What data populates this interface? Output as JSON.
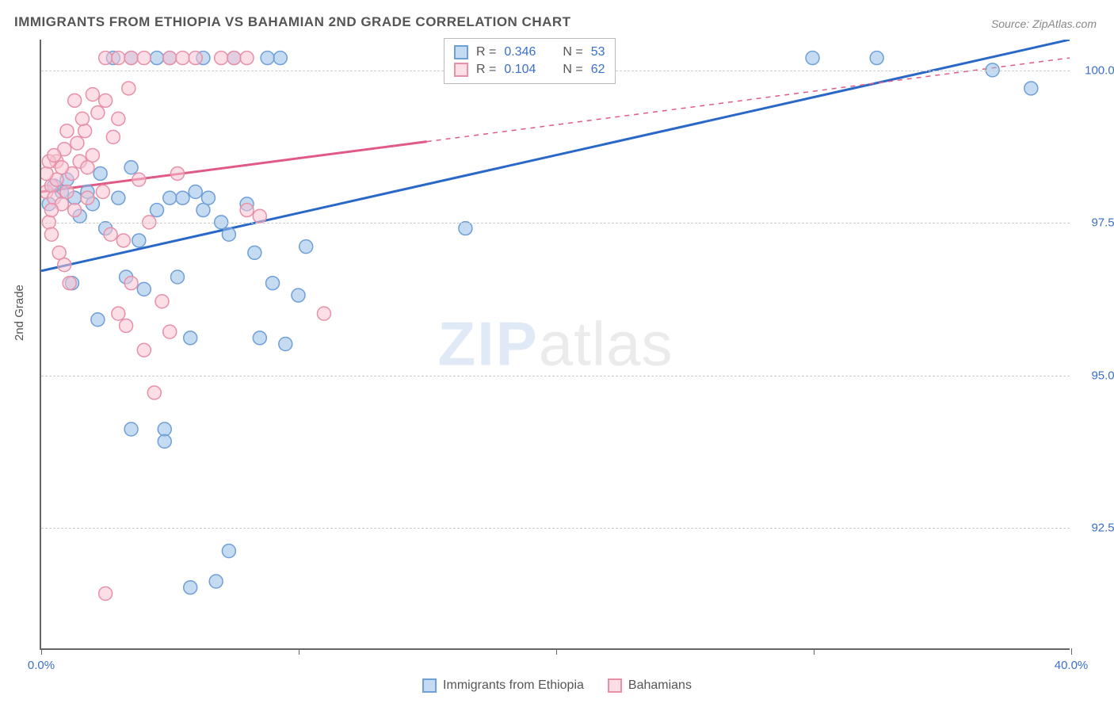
{
  "title": "IMMIGRANTS FROM ETHIOPIA VS BAHAMIAN 2ND GRADE CORRELATION CHART",
  "source": "Source: ZipAtlas.com",
  "y_axis_label": "2nd Grade",
  "watermark": {
    "zip": "ZIP",
    "atlas": "atlas"
  },
  "chart": {
    "type": "scatter",
    "xlim": [
      0,
      40
    ],
    "ylim": [
      90.5,
      100.5
    ],
    "x_ticks": [
      0,
      10,
      20,
      30,
      40
    ],
    "x_tick_labels": [
      "0.0%",
      "",
      "",
      "",
      "40.0%"
    ],
    "y_ticks": [
      92.5,
      95.0,
      97.5,
      100.0
    ],
    "y_tick_labels": [
      "92.5%",
      "95.0%",
      "97.5%",
      "100.0%"
    ],
    "grid_color": "#cccccc",
    "background_color": "#ffffff",
    "axis_color": "#666666",
    "series": [
      {
        "name": "Immigrants from Ethiopia",
        "color_stroke": "#6f9fd8",
        "color_fill": "rgba(150,190,230,0.55)",
        "line_color": "#2a68c8",
        "R": "0.346",
        "N": "53",
        "trend": {
          "x1": 0,
          "y1": 96.7,
          "x2": 40,
          "y2": 100.5,
          "x_solid_end": 40
        },
        "points": [
          [
            0.5,
            98.1
          ],
          [
            0.8,
            98.0
          ],
          [
            1.0,
            98.2
          ],
          [
            1.3,
            97.9
          ],
          [
            1.5,
            97.6
          ],
          [
            1.8,
            98.0
          ],
          [
            2.0,
            97.8
          ],
          [
            2.3,
            98.3
          ],
          [
            2.5,
            97.4
          ],
          [
            3.0,
            97.9
          ],
          [
            3.3,
            96.6
          ],
          [
            3.5,
            98.4
          ],
          [
            3.8,
            97.2
          ],
          [
            4.0,
            96.4
          ],
          [
            4.5,
            97.7
          ],
          [
            4.8,
            94.1
          ],
          [
            5.0,
            97.9
          ],
          [
            5.3,
            96.6
          ],
          [
            5.5,
            97.9
          ],
          [
            5.8,
            95.6
          ],
          [
            6.0,
            98.0
          ],
          [
            6.3,
            97.7
          ],
          [
            6.5,
            97.9
          ],
          [
            6.8,
            91.6
          ],
          [
            7.0,
            97.5
          ],
          [
            7.3,
            97.3
          ],
          [
            8.0,
            97.8
          ],
          [
            8.3,
            97.0
          ],
          [
            8.5,
            95.6
          ],
          [
            9.0,
            96.5
          ],
          [
            9.3,
            100.2
          ],
          [
            9.5,
            95.5
          ],
          [
            10.0,
            96.3
          ],
          [
            10.3,
            97.1
          ],
          [
            3.5,
            94.1
          ],
          [
            4.8,
            93.9
          ],
          [
            7.3,
            92.1
          ],
          [
            5.8,
            91.5
          ],
          [
            2.8,
            100.2
          ],
          [
            3.5,
            100.2
          ],
          [
            4.5,
            100.2
          ],
          [
            5.0,
            100.2
          ],
          [
            6.3,
            100.2
          ],
          [
            7.5,
            100.2
          ],
          [
            8.8,
            100.2
          ],
          [
            16.5,
            97.4
          ],
          [
            30.0,
            100.2
          ],
          [
            32.5,
            100.2
          ],
          [
            37.0,
            100.0
          ],
          [
            38.5,
            99.7
          ],
          [
            1.2,
            96.5
          ],
          [
            2.2,
            95.9
          ],
          [
            0.3,
            97.8
          ]
        ]
      },
      {
        "name": "Bahamians",
        "color_stroke": "#e890a8",
        "color_fill": "rgba(248,195,210,0.55)",
        "line_color": "#e05a87",
        "R": "0.104",
        "N": "62",
        "trend": {
          "x1": 0,
          "y1": 98.0,
          "x2": 40,
          "y2": 100.2,
          "x_solid_end": 15
        },
        "points": [
          [
            0.2,
            98.0
          ],
          [
            0.4,
            98.1
          ],
          [
            0.5,
            97.9
          ],
          [
            0.6,
            98.2
          ],
          [
            0.8,
            97.8
          ],
          [
            1.0,
            98.0
          ],
          [
            1.2,
            98.3
          ],
          [
            1.3,
            97.7
          ],
          [
            1.5,
            98.5
          ],
          [
            1.7,
            99.0
          ],
          [
            1.8,
            97.9
          ],
          [
            2.0,
            98.6
          ],
          [
            2.2,
            99.3
          ],
          [
            2.4,
            98.0
          ],
          [
            2.5,
            99.5
          ],
          [
            2.7,
            97.3
          ],
          [
            2.8,
            98.9
          ],
          [
            3.0,
            99.2
          ],
          [
            3.2,
            97.2
          ],
          [
            3.4,
            99.7
          ],
          [
            3.5,
            96.5
          ],
          [
            3.8,
            98.2
          ],
          [
            4.0,
            95.4
          ],
          [
            4.2,
            97.5
          ],
          [
            4.4,
            94.7
          ],
          [
            4.7,
            96.2
          ],
          [
            5.0,
            95.7
          ],
          [
            5.3,
            98.3
          ],
          [
            1.3,
            99.5
          ],
          [
            1.6,
            99.2
          ],
          [
            2.0,
            99.6
          ],
          [
            2.5,
            100.2
          ],
          [
            3.0,
            100.2
          ],
          [
            3.5,
            100.2
          ],
          [
            4.0,
            100.2
          ],
          [
            5.0,
            100.2
          ],
          [
            5.5,
            100.2
          ],
          [
            6.0,
            100.2
          ],
          [
            7.0,
            100.2
          ],
          [
            7.5,
            100.2
          ],
          [
            8.0,
            100.2
          ],
          [
            3.0,
            96.0
          ],
          [
            3.3,
            95.8
          ],
          [
            8.0,
            97.7
          ],
          [
            8.5,
            97.6
          ],
          [
            11.0,
            96.0
          ],
          [
            2.5,
            91.4
          ],
          [
            0.3,
            97.5
          ],
          [
            0.4,
            97.3
          ],
          [
            0.7,
            97.0
          ],
          [
            0.9,
            96.8
          ],
          [
            1.1,
            96.5
          ],
          [
            0.6,
            98.5
          ],
          [
            0.9,
            98.7
          ],
          [
            1.0,
            99.0
          ],
          [
            1.4,
            98.8
          ],
          [
            1.8,
            98.4
          ],
          [
            0.2,
            98.3
          ],
          [
            0.3,
            98.5
          ],
          [
            0.5,
            98.6
          ],
          [
            0.8,
            98.4
          ],
          [
            0.4,
            97.7
          ]
        ]
      }
    ]
  },
  "stats_box": {
    "rows": [
      {
        "swatch_fill": "rgba(150,190,230,0.55)",
        "swatch_border": "#6f9fd8",
        "r_label": "R =",
        "r_val": "0.346",
        "n_label": "N =",
        "n_val": "53"
      },
      {
        "swatch_fill": "rgba(248,195,210,0.55)",
        "swatch_border": "#e890a8",
        "r_label": "R =",
        "r_val": "0.104",
        "n_label": "N =",
        "n_val": "62"
      }
    ]
  },
  "bottom_legend": [
    {
      "swatch_fill": "rgba(150,190,230,0.55)",
      "swatch_border": "#6f9fd8",
      "label": "Immigrants from Ethiopia"
    },
    {
      "swatch_fill": "rgba(248,195,210,0.55)",
      "swatch_border": "#e890a8",
      "label": "Bahamians"
    }
  ]
}
